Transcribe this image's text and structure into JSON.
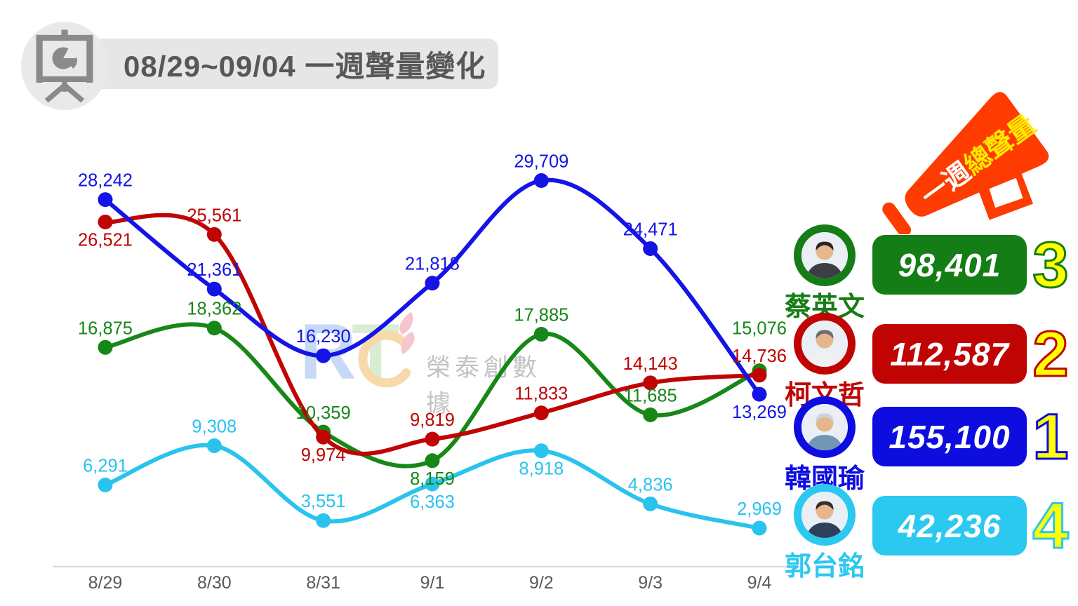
{
  "header": {
    "title": "08/29~09/04 一週聲量變化"
  },
  "watermark": {
    "letter_r": "R",
    "letter_t": "T",
    "brand_text": "榮泰創數據"
  },
  "megaphone": {
    "label_part1": "一週",
    "label_part2": "總聲量"
  },
  "chart_data": {
    "type": "line",
    "title": "08/29~09/04 一週聲量變化",
    "x_labels": [
      "8/29",
      "8/30",
      "8/31",
      "9/1",
      "9/2",
      "9/3",
      "9/4"
    ],
    "ylim": [
      0,
      30000
    ],
    "grid": false,
    "legend_position": "none",
    "series": [
      {
        "name": "郭台銘",
        "color": "#29c3ee",
        "values": [
          6291,
          9308,
          3551,
          6363,
          8918,
          4836,
          2969
        ],
        "label_pos": [
          "above",
          "above",
          "above",
          "below",
          "below",
          "above",
          "above"
        ]
      },
      {
        "name": "蔡英文",
        "color": "#178717",
        "values": [
          16875,
          18362,
          10359,
          8159,
          17885,
          11685,
          15076
        ],
        "label_pos": [
          "above",
          "above",
          "above",
          "below",
          "above",
          "above",
          "above-far"
        ]
      },
      {
        "name": "柯文哲",
        "color": "#c00404",
        "values": [
          26521,
          25561,
          9974,
          9819,
          11833,
          14143,
          14736
        ],
        "label_pos": [
          "below",
          "above",
          "below",
          "above",
          "above",
          "above",
          "above"
        ]
      },
      {
        "name": "韓國瑜",
        "color": "#1414e6",
        "values": [
          28242,
          21361,
          16230,
          21818,
          29709,
          24471,
          13269
        ],
        "label_pos": [
          "above",
          "above",
          "above",
          "above",
          "above",
          "above",
          "below"
        ]
      }
    ],
    "axis_color": "#d9d9d9",
    "tick_color": "#595959"
  },
  "ranking": [
    {
      "name": "蔡英文",
      "total": "98,401",
      "rank": "3",
      "color": "#157d15",
      "shirt": "#3d3d46",
      "hair": "#2e2420"
    },
    {
      "name": "柯文哲",
      "total": "112,587",
      "rank": "2",
      "color": "#c00404",
      "shirt": "#eef0f2",
      "hair": "#6b6f72"
    },
    {
      "name": "韓國瑜",
      "total": "155,100",
      "rank": "1",
      "color": "#0d0de0",
      "shirt": "#7297b5",
      "hair": "#cdd3d6"
    },
    {
      "name": "郭台銘",
      "total": "42,236",
      "rank": "4",
      "color": "#2bc8f0",
      "shirt": "#2f4058",
      "hair": "#3a2e28"
    }
  ]
}
